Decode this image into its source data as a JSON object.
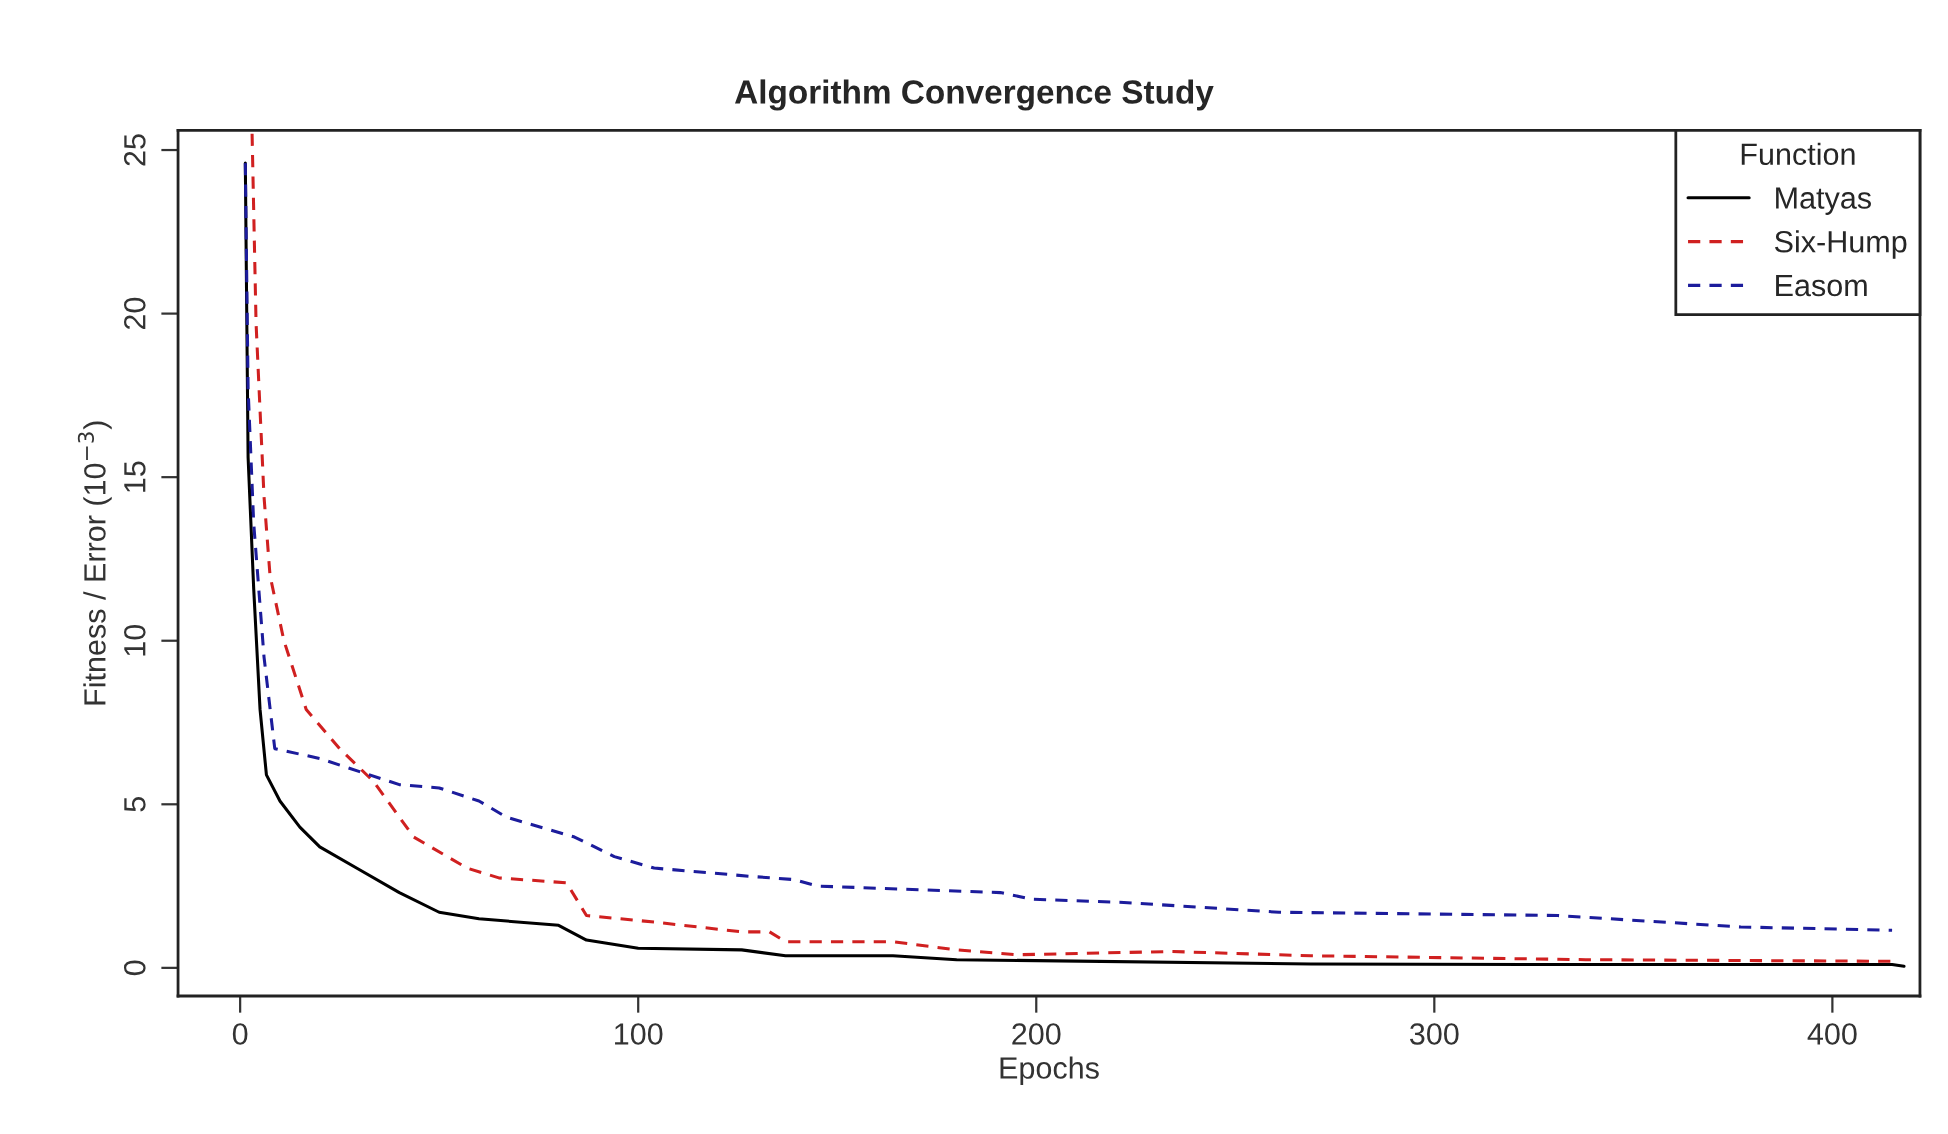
{
  "chart_data": {
    "type": "line",
    "title": "Algorithm Convergence Study",
    "xlabel": "Epochs",
    "ylabel": "Fitness / Error (10$^{−3}$)",
    "legend_title": "Function",
    "legend": "top right",
    "grid": false,
    "xlim": [
      -15.6,
      422
    ],
    "xticks": [
      0,
      100,
      200,
      300,
      400
    ],
    "ylim": [
      -0.86,
      25.6
    ],
    "yticks": [
      0,
      5,
      10,
      15,
      20,
      25
    ],
    "series": [
      {
        "name": "Matyas",
        "color": "#000000",
        "line_style": "solid",
        "x": [
          1.3,
          2,
          3.4,
          5,
          6.6,
          10,
          15,
          20,
          30,
          40,
          50,
          60,
          80,
          87,
          100,
          126,
          137,
          164,
          180,
          269,
          338,
          415,
          418
        ],
        "values": [
          24.6,
          15.6,
          11.6,
          7.9,
          5.9,
          5.1,
          4.3,
          3.7,
          3.0,
          2.3,
          1.7,
          1.5,
          1.3,
          0.85,
          0.6,
          0.55,
          0.37,
          0.37,
          0.25,
          0.12,
          0.1,
          0.1,
          0.05
        ]
      },
      {
        "name": "Six-Hump",
        "color": "#d02020",
        "line_style": "dashed",
        "x": [
          3,
          4,
          6,
          7.5,
          11,
          16.6,
          25,
          33.5,
          43.6,
          57,
          65,
          82,
          87,
          104,
          126,
          133,
          137,
          164,
          180,
          195,
          234,
          269,
          338,
          415
        ],
        "values": [
          25.5,
          19.7,
          14.4,
          12.0,
          10.0,
          7.9,
          6.7,
          5.7,
          4.0,
          3.05,
          2.75,
          2.6,
          1.6,
          1.4,
          1.1,
          1.1,
          0.8,
          0.8,
          0.55,
          0.4,
          0.5,
          0.37,
          0.25,
          0.2
        ]
      },
      {
        "name": "Easom",
        "color": "#1c1c9c",
        "line_style": "dashed",
        "x": [
          1.3,
          2,
          3.4,
          6,
          8.7,
          20,
          30,
          40,
          50,
          60,
          67,
          84,
          94,
          104,
          128,
          139,
          145,
          191,
          199,
          222,
          261,
          331,
          377,
          415
        ],
        "values": [
          24.6,
          17.7,
          13.6,
          9.5,
          6.7,
          6.4,
          6.0,
          5.6,
          5.5,
          5.1,
          4.6,
          4.0,
          3.4,
          3.05,
          2.8,
          2.7,
          2.5,
          2.3,
          2.1,
          2.0,
          1.7,
          1.6,
          1.25,
          1.15
        ]
      }
    ]
  }
}
